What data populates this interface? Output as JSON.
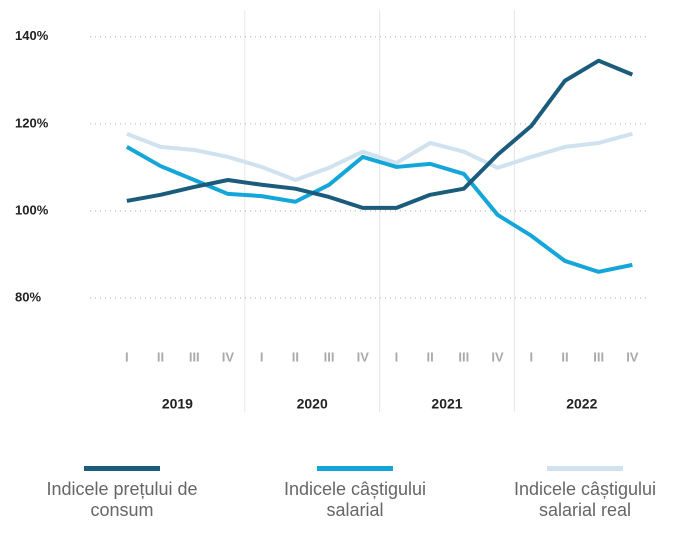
{
  "chart_data": {
    "type": "line",
    "categories": [
      "I",
      "II",
      "III",
      "IV",
      "I",
      "II",
      "III",
      "IV",
      "I",
      "II",
      "III",
      "IV",
      "I",
      "II",
      "III",
      "IV"
    ],
    "years": [
      "2019",
      "2020",
      "2021",
      "2022"
    ],
    "series": [
      {
        "name": "Indicele prețului de consum",
        "color": "#1b5b7b",
        "values": [
          102.3,
          103.7,
          105.5,
          107.1,
          106.0,
          105.1,
          103.2,
          100.7,
          100.7,
          103.7,
          105.1,
          112.9,
          119.5,
          129.9,
          134.5,
          131.3
        ]
      },
      {
        "name": "Indicele câștigului salarial",
        "color": "#14a6d8",
        "values": [
          114.7,
          110.3,
          107.1,
          103.9,
          103.4,
          102.1,
          106.0,
          112.4,
          110.1,
          110.8,
          108.5,
          99.1,
          94.3,
          88.5,
          86.0,
          87.6
        ]
      },
      {
        "name": "Indicele câștigului salarial real",
        "color": "#d0e1ef",
        "values": [
          117.7,
          114.7,
          114.0,
          112.4,
          110.1,
          107.1,
          109.9,
          113.6,
          111.0,
          115.6,
          113.6,
          109.9,
          112.4,
          114.7,
          115.6,
          117.7
        ]
      }
    ],
    "ylim": [
      70,
      145
    ],
    "yticks": [
      {
        "value": 80,
        "label": "80%"
      },
      {
        "value": 100,
        "label": "100%"
      },
      {
        "value": 120,
        "label": "120%"
      },
      {
        "value": 140,
        "label": "140%"
      }
    ],
    "grid": true,
    "legend": "bottom"
  }
}
